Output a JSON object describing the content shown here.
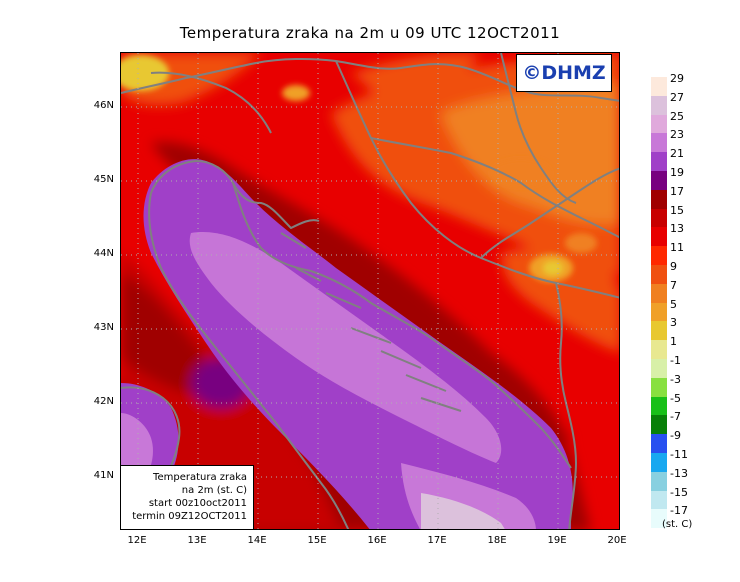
{
  "title": "Temperatura zraka na 2m u 09 UTC 12OCT2011",
  "logo": "©DHMZ",
  "info_box": {
    "line1": "Temperatura zraka",
    "line2": "na 2m (st. C)",
    "line3": "start 00z10oct2011",
    "line4": "termin 09Z12OCT2011"
  },
  "axes": {
    "lat_labels": [
      "46N",
      "45N",
      "44N",
      "43N",
      "42N",
      "41N"
    ],
    "lon_labels": [
      "12E",
      "13E",
      "14E",
      "15E",
      "16E",
      "17E",
      "18E",
      "19E",
      "20E"
    ]
  },
  "colorbar": {
    "labels": [
      "29",
      "27",
      "25",
      "23",
      "21",
      "19",
      "17",
      "15",
      "13",
      "11",
      "9",
      "7",
      "5",
      "3",
      "1",
      "-1",
      "-3",
      "-5",
      "-7",
      "-9",
      "-11",
      "-13",
      "-15",
      "-17"
    ],
    "colors": [
      "#fde9dc",
      "#dcc1dc",
      "#e0a9dc",
      "#c878d8",
      "#a040c8",
      "#780080",
      "#a00000",
      "#c80000",
      "#e80000",
      "#ff2800",
      "#f05010",
      "#f08020",
      "#f0a028",
      "#e8c830",
      "#e8e890",
      "#d8f0a8",
      "#88e040",
      "#18c018",
      "#088008",
      "#2850f0",
      "#18a8f0",
      "#88d0e0",
      "#c0e8f0",
      "#e8fcfc"
    ],
    "units": "(st. C)"
  },
  "colors": {
    "sea_warm": "#a040c8",
    "sea_warmer": "#c878d8",
    "coast": "#808080"
  }
}
